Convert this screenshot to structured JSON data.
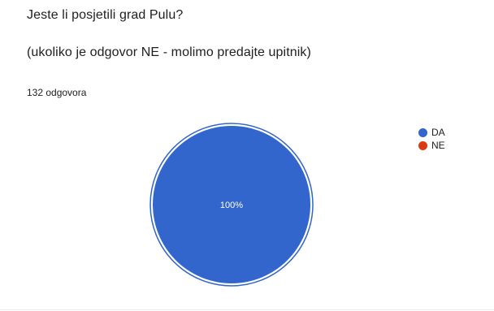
{
  "question": {
    "title": "Jeste li posjetili grad Pulu?",
    "description": "(ukoliko je odgovor NE - molimo predajte upitnik)",
    "response_count": "132 odgovora"
  },
  "colors": {
    "DA": "#3366cc",
    "NE": "#dc3912",
    "outline": "#3366cc",
    "label_text": "#ffffff"
  },
  "chart_data": {
    "type": "pie",
    "categories": [
      "DA",
      "NE"
    ],
    "values": [
      100,
      0
    ],
    "data_labels": [
      "100%",
      ""
    ],
    "title": "",
    "legend": "right"
  }
}
